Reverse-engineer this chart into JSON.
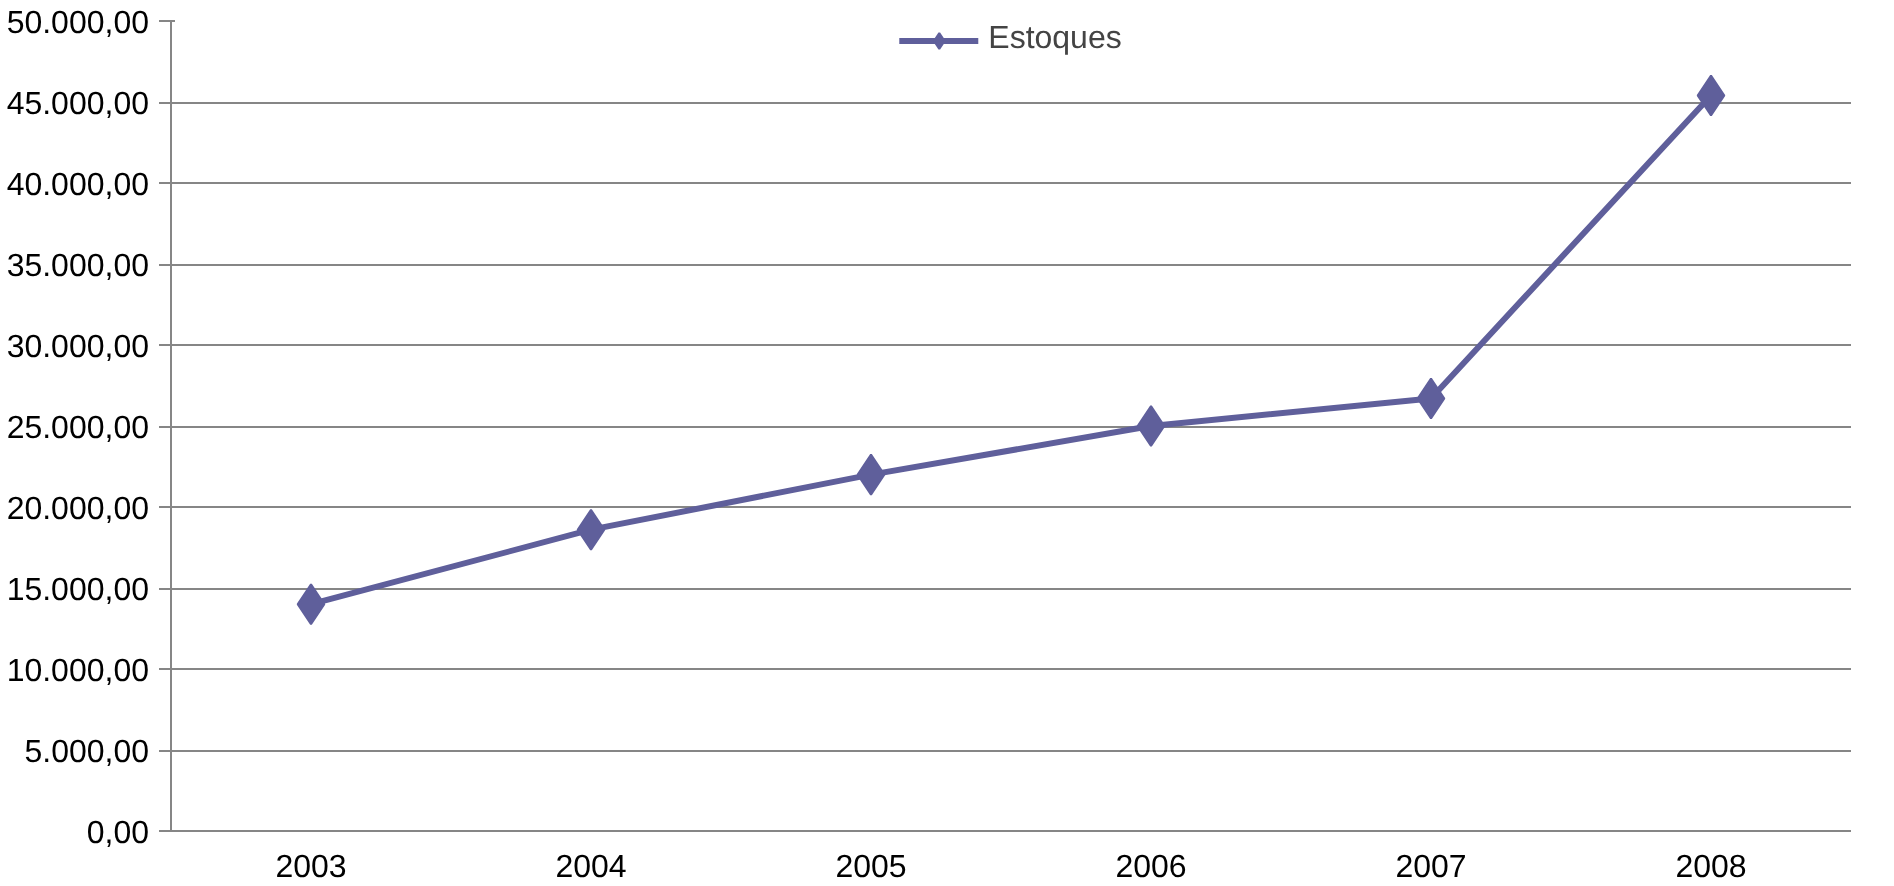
{
  "chart_data": {
    "type": "line",
    "categories": [
      "2003",
      "2004",
      "2005",
      "2006",
      "2007",
      "2008"
    ],
    "series": [
      {
        "name": "Estoques",
        "color": "#5f5f9b",
        "values": [
          14000,
          18600,
          22000,
          25000,
          26700,
          45400
        ]
      }
    ],
    "ylim": [
      0,
      50000
    ],
    "yticks": [
      {
        "value": 0,
        "label": "0,00"
      },
      {
        "value": 5000,
        "label": "5.000,00"
      },
      {
        "value": 10000,
        "label": "10.000,00"
      },
      {
        "value": 15000,
        "label": "15.000,00"
      },
      {
        "value": 20000,
        "label": "20.000,00"
      },
      {
        "value": 25000,
        "label": "25.000,00"
      },
      {
        "value": 30000,
        "label": "30.000,00"
      },
      {
        "value": 35000,
        "label": "35.000,00"
      },
      {
        "value": 40000,
        "label": "40.000,00"
      },
      {
        "value": 45000,
        "label": "45.000,00"
      },
      {
        "value": 50000,
        "label": "50.000,00"
      }
    ],
    "grid": "y",
    "legend": "top",
    "marker": "diamond",
    "line_style": "solid"
  }
}
